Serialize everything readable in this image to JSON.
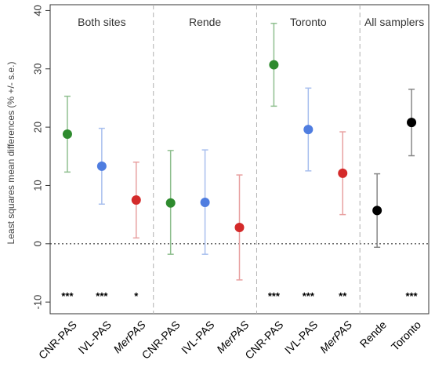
{
  "chart_data": {
    "type": "scatter",
    "ylabel": "Least squares mean differences (% +/- s.e.)",
    "ylim": [
      -12,
      41
    ],
    "yticks": [
      -10,
      0,
      10,
      20,
      30,
      40
    ],
    "reference_line": 0,
    "panels": [
      {
        "title": "Both sites",
        "categories": [
          0,
          1,
          2
        ]
      },
      {
        "title": "Rende",
        "categories": [
          3,
          4,
          5
        ]
      },
      {
        "title": "Toronto",
        "categories": [
          6,
          7,
          8
        ]
      },
      {
        "title": "All samplers",
        "categories": [
          9,
          10
        ]
      }
    ],
    "categories": [
      {
        "label": "CNR-PAS",
        "italic": false
      },
      {
        "label": "IVL-PAS",
        "italic": false
      },
      {
        "label": "MerPAS",
        "italic": true
      },
      {
        "label": "CNR-PAS",
        "italic": false
      },
      {
        "label": "IVL-PAS",
        "italic": false
      },
      {
        "label": "MerPAS",
        "italic": true
      },
      {
        "label": "CNR-PAS",
        "italic": false
      },
      {
        "label": "IVL-PAS",
        "italic": false
      },
      {
        "label": "MerPAS",
        "italic": true
      },
      {
        "label": "Rende",
        "italic": false
      },
      {
        "label": "Toronto",
        "italic": false
      }
    ],
    "points": [
      {
        "value": 18.8,
        "lower": 12.3,
        "upper": 25.3,
        "sig": "***",
        "color": "#2e8b2e",
        "bar_color": "#8fbf8f"
      },
      {
        "value": 13.3,
        "lower": 6.8,
        "upper": 19.8,
        "sig": "***",
        "color": "#4f7de0",
        "bar_color": "#a8bfee"
      },
      {
        "value": 7.5,
        "lower": 1.0,
        "upper": 14.0,
        "sig": "*",
        "color": "#d42a2a",
        "bar_color": "#e8a0a0"
      },
      {
        "value": 7.0,
        "lower": -1.8,
        "upper": 16.0,
        "sig": "",
        "color": "#2e8b2e",
        "bar_color": "#8fbf8f"
      },
      {
        "value": 7.1,
        "lower": -1.8,
        "upper": 16.1,
        "sig": "",
        "color": "#4f7de0",
        "bar_color": "#a8bfee"
      },
      {
        "value": 2.8,
        "lower": -6.2,
        "upper": 11.8,
        "sig": "",
        "color": "#d42a2a",
        "bar_color": "#e8a0a0"
      },
      {
        "value": 30.7,
        "lower": 23.6,
        "upper": 37.8,
        "sig": "***",
        "color": "#2e8b2e",
        "bar_color": "#8fbf8f"
      },
      {
        "value": 19.6,
        "lower": 12.5,
        "upper": 26.7,
        "sig": "***",
        "color": "#4f7de0",
        "bar_color": "#a8bfee"
      },
      {
        "value": 12.1,
        "lower": 5.0,
        "upper": 19.2,
        "sig": "**",
        "color": "#d42a2a",
        "bar_color": "#e8a0a0"
      },
      {
        "value": 5.7,
        "lower": -0.6,
        "upper": 12.0,
        "sig": "",
        "color": "#000000",
        "bar_color": "#888888"
      },
      {
        "value": 20.8,
        "lower": 15.1,
        "upper": 26.5,
        "sig": "***",
        "color": "#000000",
        "bar_color": "#888888"
      }
    ]
  }
}
